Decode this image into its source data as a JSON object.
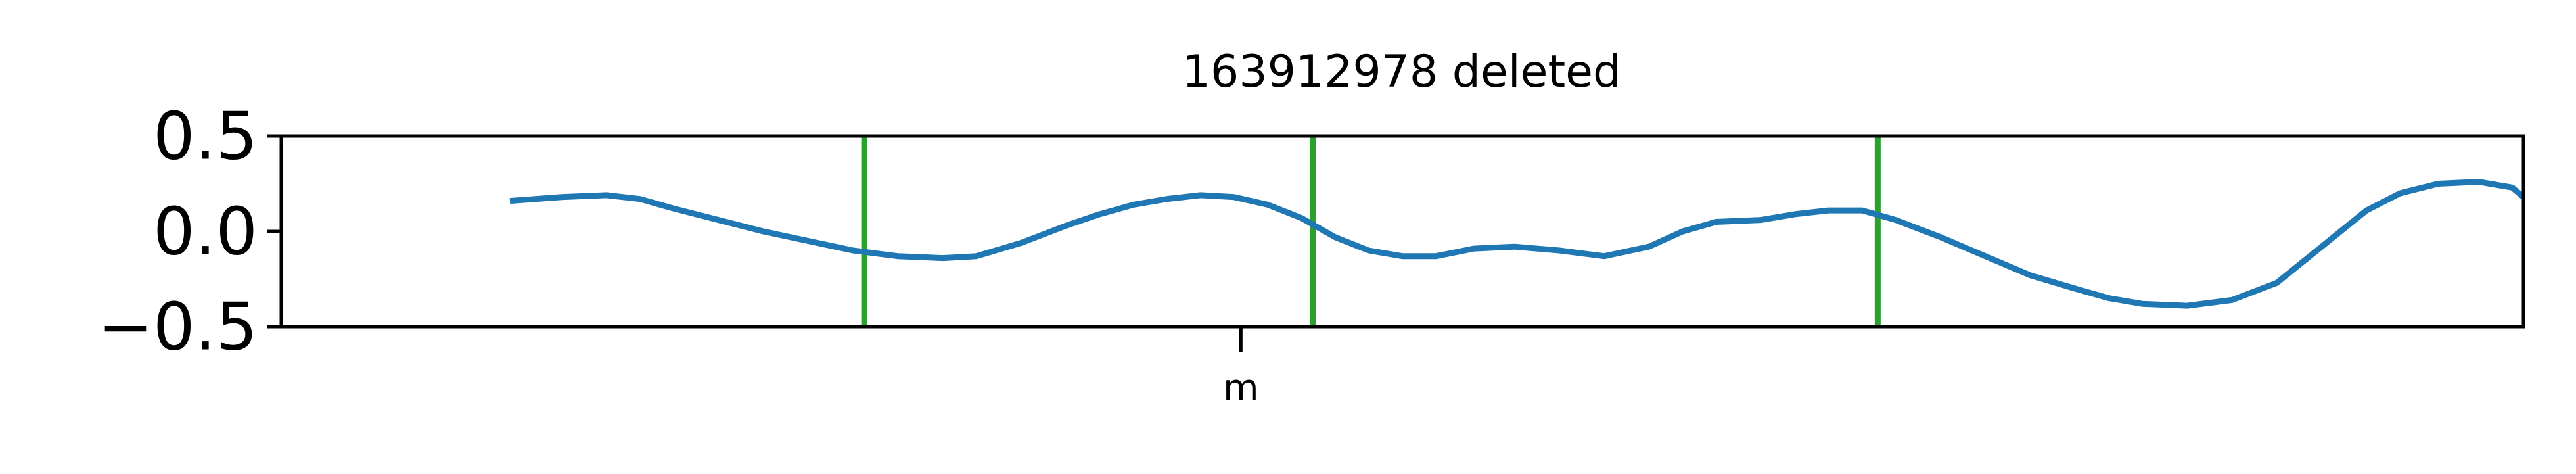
{
  "chart_data": {
    "type": "line",
    "title": "163912978 deleted",
    "xlabel": "",
    "ylabel": "",
    "xlim": [
      0,
      1000
    ],
    "ylim": [
      -0.5,
      0.5
    ],
    "x_ticks": [
      {
        "value": 428,
        "label": "m"
      }
    ],
    "y_ticks": [
      {
        "value": 0.5,
        "label": "0.5"
      },
      {
        "value": 0.0,
        "label": "0.0"
      },
      {
        "value": -0.5,
        "label": "−0.5"
      }
    ],
    "grid": false,
    "legend": "none",
    "series": [
      {
        "color": "#1f77b4",
        "x": [
          102,
          125,
          145,
          160,
          175,
          195,
          215,
          235,
          255,
          275,
          295,
          310,
          330,
          350,
          365,
          380,
          395,
          410,
          425,
          440,
          455,
          470,
          485,
          500,
          515,
          532,
          550,
          570,
          590,
          610,
          625,
          640,
          660,
          675,
          690,
          705,
          720,
          740,
          760,
          780,
          800,
          815,
          830,
          850,
          870,
          890,
          910,
          930,
          945,
          962,
          980,
          995,
          1000
        ],
        "y": [
          0.16,
          0.18,
          0.19,
          0.17,
          0.12,
          0.06,
          0.0,
          -0.05,
          -0.1,
          -0.13,
          -0.14,
          -0.13,
          -0.06,
          0.03,
          0.09,
          0.14,
          0.17,
          0.19,
          0.18,
          0.14,
          0.07,
          -0.03,
          -0.1,
          -0.13,
          -0.13,
          -0.09,
          -0.08,
          -0.1,
          -0.13,
          -0.08,
          0.0,
          0.05,
          0.06,
          0.09,
          0.11,
          0.11,
          0.06,
          -0.03,
          -0.13,
          -0.23,
          -0.3,
          -0.35,
          -0.38,
          -0.39,
          -0.36,
          -0.27,
          -0.08,
          0.11,
          0.2,
          0.25,
          0.26,
          0.23,
          0.18
        ]
      }
    ],
    "vertical_lines": {
      "color": "#2ca02c",
      "x": [
        260,
        460,
        712
      ]
    },
    "colors": {
      "series": "#1f77b4",
      "markers": "#2ca02c",
      "axes": "#000000",
      "background": "#ffffff"
    }
  }
}
